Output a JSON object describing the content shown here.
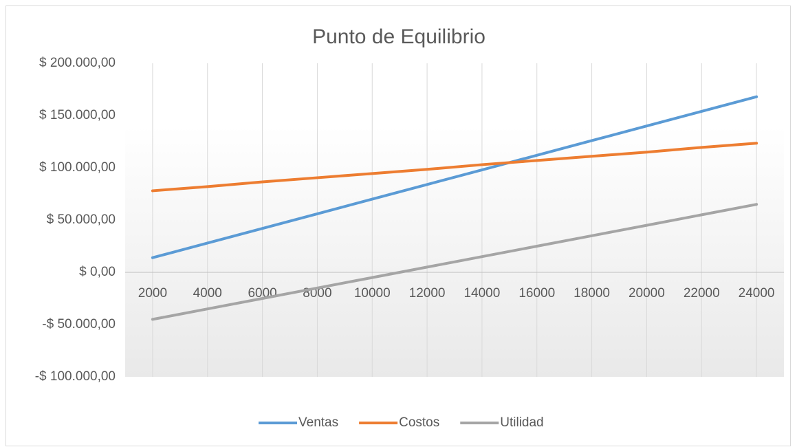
{
  "chart_data": {
    "type": "line",
    "title": "Punto de Equilibrio",
    "categories": [
      "2000",
      "4000",
      "6000",
      "8000",
      "10000",
      "12000",
      "14000",
      "16000",
      "18000",
      "20000",
      "22000",
      "24000"
    ],
    "series": [
      {
        "name": "Ventas",
        "color": "#5b9bd5",
        "values": [
          14000,
          28000,
          42000,
          56000,
          70000,
          84000,
          98000,
          112000,
          126000,
          140000,
          154000,
          168000
        ]
      },
      {
        "name": "Costos",
        "color": "#ed7d31",
        "values": [
          78000,
          82000,
          86500,
          90500,
          94500,
          98500,
          103000,
          107000,
          111000,
          115000,
          119500,
          123500
        ]
      },
      {
        "name": "Utilidad",
        "color": "#a5a5a5",
        "values": [
          -45000,
          -35000,
          -25000,
          -15000,
          -5000,
          5000,
          15000,
          25000,
          35000,
          45000,
          55000,
          65000
        ]
      }
    ],
    "ylim": [
      -100000,
      200000
    ],
    "yticks": [
      {
        "value": -100000,
        "label": "-$ 100.000,00"
      },
      {
        "value": -50000,
        "label": "-$ 50.000,00"
      },
      {
        "value": 0,
        "label": "$ 0,00"
      },
      {
        "value": 50000,
        "label": "$ 50.000,00"
      },
      {
        "value": 100000,
        "label": "$ 100.000,00"
      },
      {
        "value": 150000,
        "label": "$ 150.000,00"
      },
      {
        "value": 200000,
        "label": "$ 200.000,00"
      }
    ],
    "grid": "vertical",
    "legend": "bottom"
  }
}
